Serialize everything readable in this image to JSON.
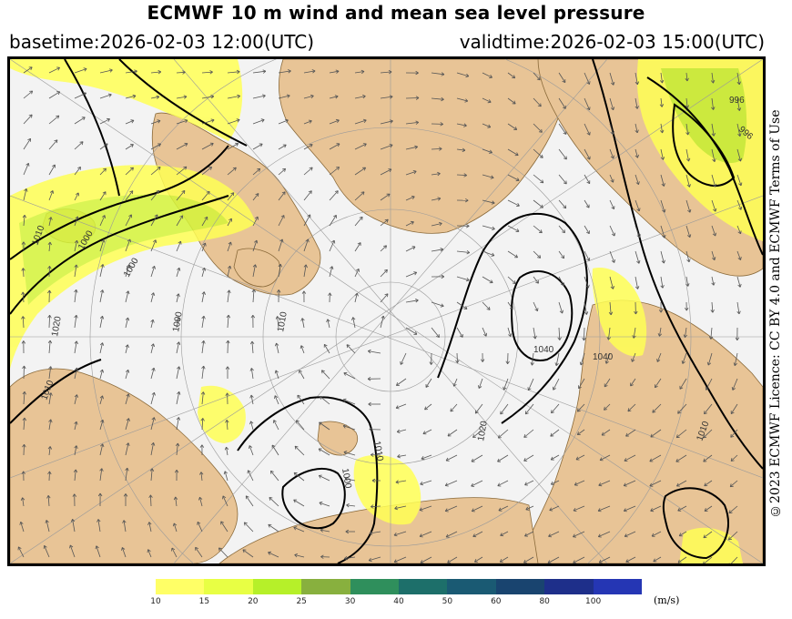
{
  "header": {
    "title": "ECMWF 10 m wind and mean sea level pressure",
    "basetime": "basetime:2026-02-03 12:00(UTC)",
    "validtime": "validtime:2026-02-03 15:00(UTC)"
  },
  "licence": "©2023 ECMWF Licence: CC BY 4.0 and ECMWF Terms of Use",
  "map": {
    "isobar_labels": [
      "1000",
      "1010",
      "1020",
      "1040",
      "1000",
      "996",
      "1010",
      "1040",
      "1010",
      "1000",
      "1020",
      "1010",
      "1010",
      "996",
      "1000"
    ],
    "colors": {
      "land": "#e8c496",
      "sea_ice": "#f4f4f4",
      "isobar": "#000000"
    }
  },
  "legend": {
    "unit": "(m/s)",
    "ticks": [
      "10",
      "15",
      "20",
      "25",
      "30",
      "40",
      "50",
      "60",
      "80",
      "100"
    ],
    "colors": [
      "#ffff66",
      "#e8ff44",
      "#b6f029",
      "#88b03e",
      "#2f8f5c",
      "#1d6f6a",
      "#1a5a73",
      "#19446f",
      "#1e2f8a",
      "#2536b4"
    ]
  }
}
